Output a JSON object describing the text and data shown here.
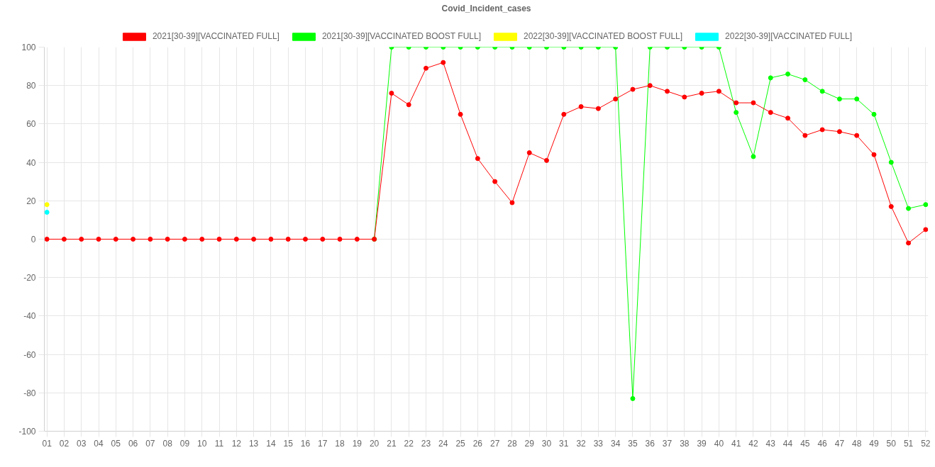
{
  "chart_data": {
    "type": "line",
    "title": "Covid_Incident_cases",
    "categories": [
      "01",
      "02",
      "03",
      "04",
      "05",
      "06",
      "07",
      "08",
      "09",
      "10",
      "11",
      "12",
      "13",
      "14",
      "15",
      "16",
      "17",
      "18",
      "19",
      "20",
      "21",
      "22",
      "23",
      "24",
      "25",
      "26",
      "27",
      "28",
      "29",
      "30",
      "31",
      "32",
      "33",
      "34",
      "35",
      "36",
      "37",
      "38",
      "39",
      "40",
      "41",
      "42",
      "43",
      "44",
      "45",
      "46",
      "47",
      "48",
      "49",
      "50",
      "51",
      "52"
    ],
    "ylim": [
      -100,
      100
    ],
    "yticks": [
      -100,
      -80,
      -60,
      -40,
      -20,
      0,
      20,
      40,
      60,
      80,
      100
    ],
    "grid": true,
    "legend": "top",
    "marker": "circle",
    "line_style": "solid",
    "series": [
      {
        "name": "2021[30-39][VACCINATED FULL]",
        "color": "#ff0000",
        "values": [
          0,
          0,
          0,
          0,
          0,
          0,
          0,
          0,
          0,
          0,
          0,
          0,
          0,
          0,
          0,
          0,
          0,
          0,
          0,
          0,
          76,
          70,
          89,
          92,
          65,
          42,
          30,
          19,
          45,
          41,
          65,
          69,
          68,
          73,
          78,
          80,
          77,
          74,
          76,
          77,
          71,
          71,
          66,
          63,
          54,
          57,
          56,
          54,
          44,
          17,
          -2,
          5
        ]
      },
      {
        "name": "2021[30-39][VACCINATED BOOST FULL]",
        "color": "#00ff00",
        "values": [
          null,
          null,
          null,
          null,
          null,
          null,
          null,
          null,
          null,
          null,
          null,
          null,
          null,
          null,
          null,
          null,
          null,
          null,
          null,
          0,
          100,
          100,
          100,
          100,
          100,
          100,
          100,
          100,
          100,
          100,
          100,
          100,
          100,
          100,
          -83,
          100,
          100,
          100,
          100,
          100,
          66,
          43,
          84,
          86,
          83,
          77,
          73,
          73,
          65,
          40,
          16,
          18
        ]
      },
      {
        "name": "2022[30-39][VACCINATED BOOST FULL]",
        "color": "#ffff00",
        "values": [
          18,
          null,
          null,
          null,
          null,
          null,
          null,
          null,
          null,
          null,
          null,
          null,
          null,
          null,
          null,
          null,
          null,
          null,
          null,
          null,
          null,
          null,
          null,
          null,
          null,
          null,
          null,
          null,
          null,
          null,
          null,
          null,
          null,
          null,
          null,
          null,
          null,
          null,
          null,
          null,
          null,
          null,
          null,
          null,
          null,
          null,
          null,
          null,
          null,
          null,
          null,
          null
        ]
      },
      {
        "name": "2022[30-39][VACCINATED FULL]",
        "color": "#00ffff",
        "values": [
          14,
          null,
          null,
          null,
          null,
          null,
          null,
          null,
          null,
          null,
          null,
          null,
          null,
          null,
          null,
          null,
          null,
          null,
          null,
          null,
          null,
          null,
          null,
          null,
          null,
          null,
          null,
          null,
          null,
          null,
          null,
          null,
          null,
          null,
          null,
          null,
          null,
          null,
          null,
          null,
          null,
          null,
          null,
          null,
          null,
          null,
          null,
          null,
          null,
          null,
          null,
          null
        ]
      }
    ]
  }
}
